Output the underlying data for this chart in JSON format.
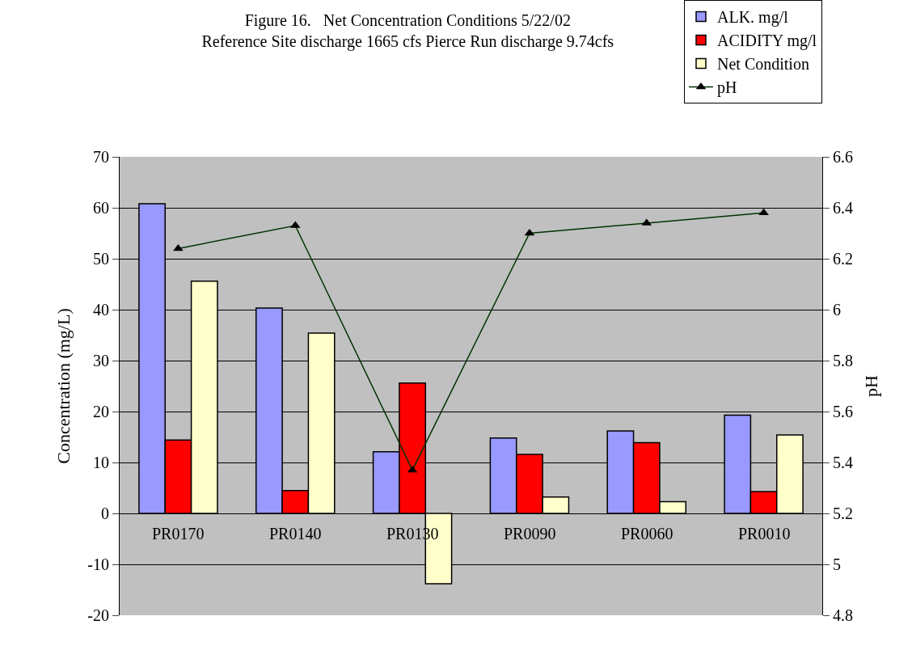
{
  "chart_data": {
    "type": "bar",
    "title": "Figure 16.   Net Concentration Conditions 5/22/02",
    "subtitle": "Reference Site discharge 1665 cfs Pierce Run discharge 9.74cfs",
    "ylabel": "Concentration (mg/L)",
    "y2label": "pH",
    "categories": [
      "PR0170",
      "PR0140",
      "PR0130",
      "PR0090",
      "PR0060",
      "PR0010"
    ],
    "series": [
      {
        "name": "ALK. mg/l",
        "color": "#9999ff",
        "values": [
          60.8,
          40.3,
          12.1,
          14.8,
          16.2,
          19.3
        ]
      },
      {
        "name": "ACIDITY mg/l",
        "color": "#ff0000",
        "values": [
          14.4,
          4.5,
          25.6,
          11.6,
          13.9,
          4.3
        ]
      },
      {
        "name": "Net Condition",
        "color": "#ffffcc",
        "values": [
          45.6,
          35.4,
          -13.8,
          3.2,
          2.3,
          15.4
        ]
      },
      {
        "name": "pH",
        "type": "line",
        "axis": "y2",
        "color": "#003300",
        "marker": "triangle",
        "values": [
          6.24,
          6.33,
          5.37,
          6.3,
          6.34,
          6.38
        ]
      }
    ],
    "ylim": [
      -20,
      70
    ],
    "yticks": [
      -20,
      -10,
      0,
      10,
      20,
      30,
      40,
      50,
      60,
      70
    ],
    "y2lim": [
      4.8,
      6.6
    ],
    "y2ticks": [
      4.8,
      5,
      5.2,
      5.4,
      5.6,
      5.8,
      6,
      6.2,
      6.4,
      6.6
    ],
    "grid": "y",
    "legend": "top right"
  }
}
